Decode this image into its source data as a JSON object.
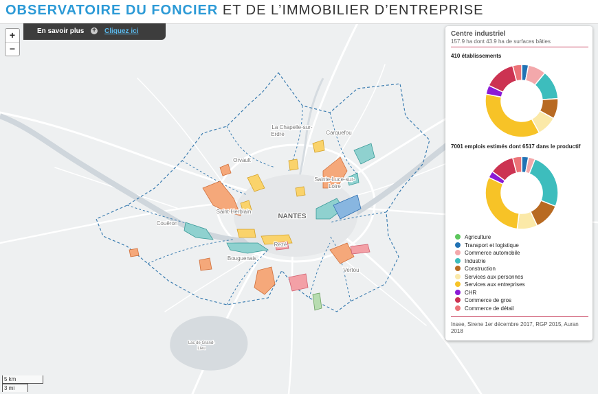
{
  "header": {
    "title_highlight": "OBSERVATOIRE DU FONCIER",
    "title_rest": " ET DE L’IMMOBILIER D’ENTREPRISE"
  },
  "infobar": {
    "label": "En savoir plus",
    "plus": "+",
    "link": "Cliquez ici"
  },
  "zoom": {
    "in": "+",
    "out": "−"
  },
  "scale": {
    "metric": "5 km",
    "imperial": "3 mi"
  },
  "map": {
    "places": [
      {
        "name": "La Chapelle-sur-",
        "cls": "place"
      },
      {
        "name": "Erdre",
        "cls": "place"
      },
      {
        "name": "Carquefou",
        "cls": "place"
      },
      {
        "name": "Orvault",
        "cls": "place"
      },
      {
        "name": "Sainte-Luce-sur-",
        "cls": "place"
      },
      {
        "name": "Loire",
        "cls": "place"
      },
      {
        "name": "Saint-Herblain",
        "cls": "place"
      },
      {
        "name": "NANTES",
        "cls": "city"
      },
      {
        "name": "Couëron",
        "cls": "place"
      },
      {
        "name": "Rezé",
        "cls": "place"
      },
      {
        "name": "Bouguenais",
        "cls": "place"
      },
      {
        "name": "Vertou",
        "cls": "place"
      },
      {
        "name": "Lac de Grand-",
        "cls": "small"
      },
      {
        "name": "Lieu",
        "cls": "small"
      }
    ]
  },
  "panel": {
    "title": "Centre industriel",
    "subtitle": "157.9 ha dont 43.9 ha de surfaces bâties",
    "etablissements_label": "410 établissements",
    "emplois_label": "7001 emplois estimés dont 6517 dans le productif",
    "source": "Insee, Sirene 1er décembre 2017, RGP 2015, Auran 2018"
  },
  "legend": [
    {
      "label": "Agriculture",
      "color": "#5cc65c"
    },
    {
      "label": "Transport et logistique",
      "color": "#2172b4"
    },
    {
      "label": "Commerce automobile",
      "color": "#f3a8ab"
    },
    {
      "label": "Industrie",
      "color": "#3dbdbd"
    },
    {
      "label": "Construction",
      "color": "#b86a22"
    },
    {
      "label": "Services aux personnes",
      "color": "#fbe9a8"
    },
    {
      "label": "Services aux entreprises",
      "color": "#f7c327"
    },
    {
      "label": "CHR",
      "color": "#8b1bd6"
    },
    {
      "label": "Commerce de gros",
      "color": "#cc3352"
    },
    {
      "label": "Commerce de détail",
      "color": "#ec7378"
    }
  ],
  "chart_data": [
    {
      "type": "pie",
      "title": "410 établissements",
      "categories": [
        "Agriculture",
        "Transport et logistique",
        "Commerce automobile",
        "Industrie",
        "Construction",
        "Services aux personnes",
        "Services aux entreprises",
        "CHR",
        "Commerce de gros",
        "Commerce de détail"
      ],
      "values": [
        0,
        3,
        8,
        13,
        9,
        9,
        36,
        4,
        14,
        4
      ]
    },
    {
      "type": "pie",
      "title": "7001 emplois estimés dont 6517 dans le productif",
      "categories": [
        "Agriculture",
        "Transport et logistique",
        "Commerce automobile",
        "Industrie",
        "Construction",
        "Services aux personnes",
        "Services aux entreprises",
        "CHR",
        "Commerce de gros",
        "Commerce de détail"
      ],
      "values": [
        0,
        3,
        3,
        25,
        12,
        9,
        30,
        3,
        11,
        4
      ]
    }
  ]
}
